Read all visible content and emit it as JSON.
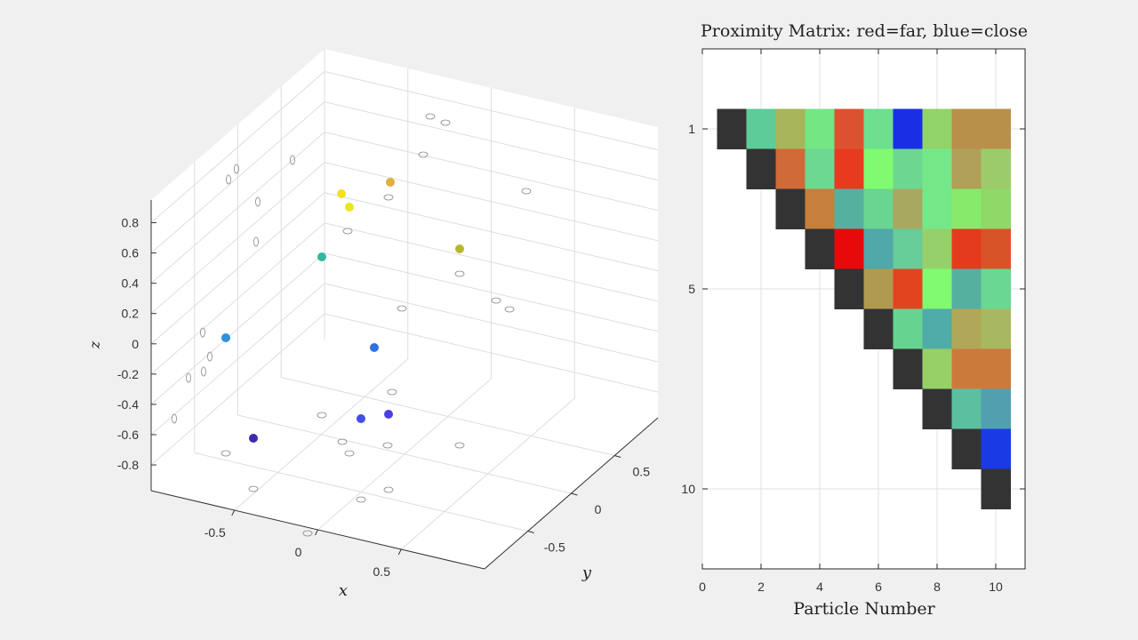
{
  "chart_data": [
    {
      "type": "scatter",
      "title": "",
      "xlabel": "x",
      "ylabel": "y",
      "zlabel": "z",
      "xlim": [
        -1,
        1
      ],
      "ylim": [
        -1,
        1
      ],
      "zlim": [
        -0.97,
        0.95
      ],
      "x_ticks": [
        "-0.5",
        "0",
        "0.5"
      ],
      "y_ticks": [
        "-0.5",
        "0",
        "0.5"
      ],
      "z_ticks": [
        "-0.8",
        "-0.6",
        "-0.4",
        "-0.2",
        "0",
        "0.2",
        "0.4",
        "0.6",
        "0.8"
      ],
      "grid": true,
      "point_colors": [
        "#f0e020",
        "#e8e820",
        "#e0b040",
        "#b8b830",
        "#30b8a0",
        "#3090e0",
        "#3070e0",
        "#4050e0",
        "#4a40e0",
        "#4028b0"
      ],
      "projection_marker": "hollow-circle"
    },
    {
      "type": "heatmap",
      "title": "Proximity Matrix: red=far, blue=close",
      "xlabel": "Particle Number",
      "ylabel": "",
      "xlim": [
        0,
        11
      ],
      "ylim": [
        -1,
        12
      ],
      "x_ticks": [
        "0",
        "2",
        "4",
        "6",
        "8",
        "10"
      ],
      "y_ticks": [
        "1",
        "5",
        "10"
      ],
      "grid": true,
      "legend": "diagonal=black, red=far, blue=close",
      "cells": [
        [
          "#333333",
          "#5dcc98",
          "#a8b55a",
          "#74e683",
          "#dc5230",
          "#6ddf8f",
          "#1a2ee6",
          "#92d36a",
          "#b8904a",
          "#b8904a"
        ],
        [
          null,
          "#333333",
          "#d06a38",
          "#6dd892",
          "#e83a1e",
          "#80fa70",
          "#6dd792",
          "#74e888",
          "#b0a05a",
          "#9ccc6a"
        ],
        [
          null,
          null,
          "#333333",
          "#c4803c",
          "#55b0a0",
          "#6ad590",
          "#a8a860",
          "#74e888",
          "#88ea6a",
          "#90d868"
        ],
        [
          null,
          null,
          null,
          "#333333",
          "#e80a0a",
          "#50a8a8",
          "#66cc98",
          "#96d06a",
          "#e43a1e",
          "#d85428"
        ],
        [
          null,
          null,
          null,
          null,
          "#333333",
          "#b09a50",
          "#e24420",
          "#80fa70",
          "#55b0a0",
          "#6ad892"
        ],
        [
          null,
          null,
          null,
          null,
          null,
          "#333333",
          "#66d490",
          "#50aca6",
          "#b0a858",
          "#a8b860"
        ],
        [
          null,
          null,
          null,
          null,
          null,
          null,
          "#333333",
          "#98d068",
          "#cc7a3c",
          "#cc7a3c"
        ],
        [
          null,
          null,
          null,
          null,
          null,
          null,
          null,
          "#333333",
          "#5cc0a0",
          "#50a0b0"
        ],
        [
          null,
          null,
          null,
          null,
          null,
          null,
          null,
          null,
          "#333333",
          "#1a3ae6"
        ],
        [
          null,
          null,
          null,
          null,
          null,
          null,
          null,
          null,
          null,
          "#333333"
        ]
      ]
    }
  ]
}
